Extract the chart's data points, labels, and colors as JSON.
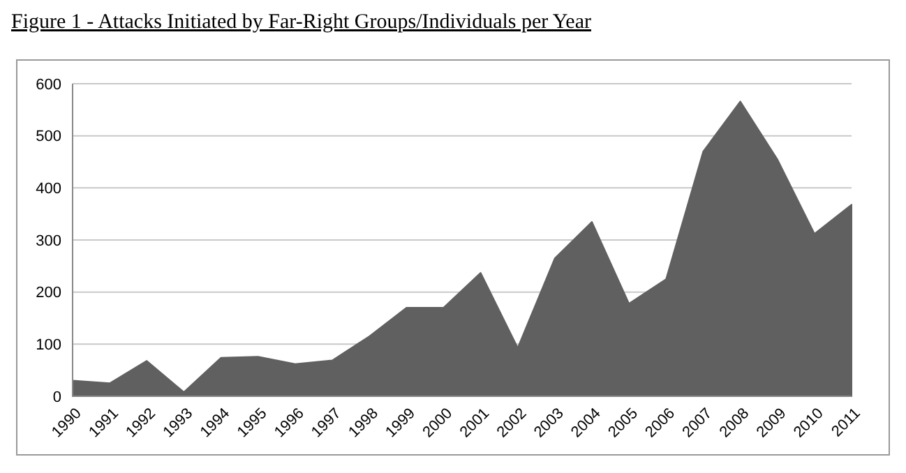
{
  "chart_data": {
    "type": "area",
    "title": "Figure 1 - Attacks Initiated by Far-Right Groups/Individuals per Year",
    "categories": [
      "1990",
      "1991",
      "1992",
      "1993",
      "1994",
      "1995",
      "1996",
      "1997",
      "1998",
      "1999",
      "2000",
      "2001",
      "2002",
      "2003",
      "2004",
      "2005",
      "2006",
      "2007",
      "2008",
      "2009",
      "2010",
      "2011"
    ],
    "series": [
      {
        "color": "#606060",
        "values": [
          30,
          25,
          68,
          8,
          74,
          76,
          62,
          69,
          115,
          170,
          170,
          237,
          93,
          265,
          335,
          178,
          225,
          470,
          566,
          455,
          312,
          368
        ]
      }
    ],
    "ylim": [
      0,
      600
    ],
    "yticks": [
      0,
      100,
      200,
      300,
      400,
      500,
      600
    ],
    "grid": "y"
  }
}
